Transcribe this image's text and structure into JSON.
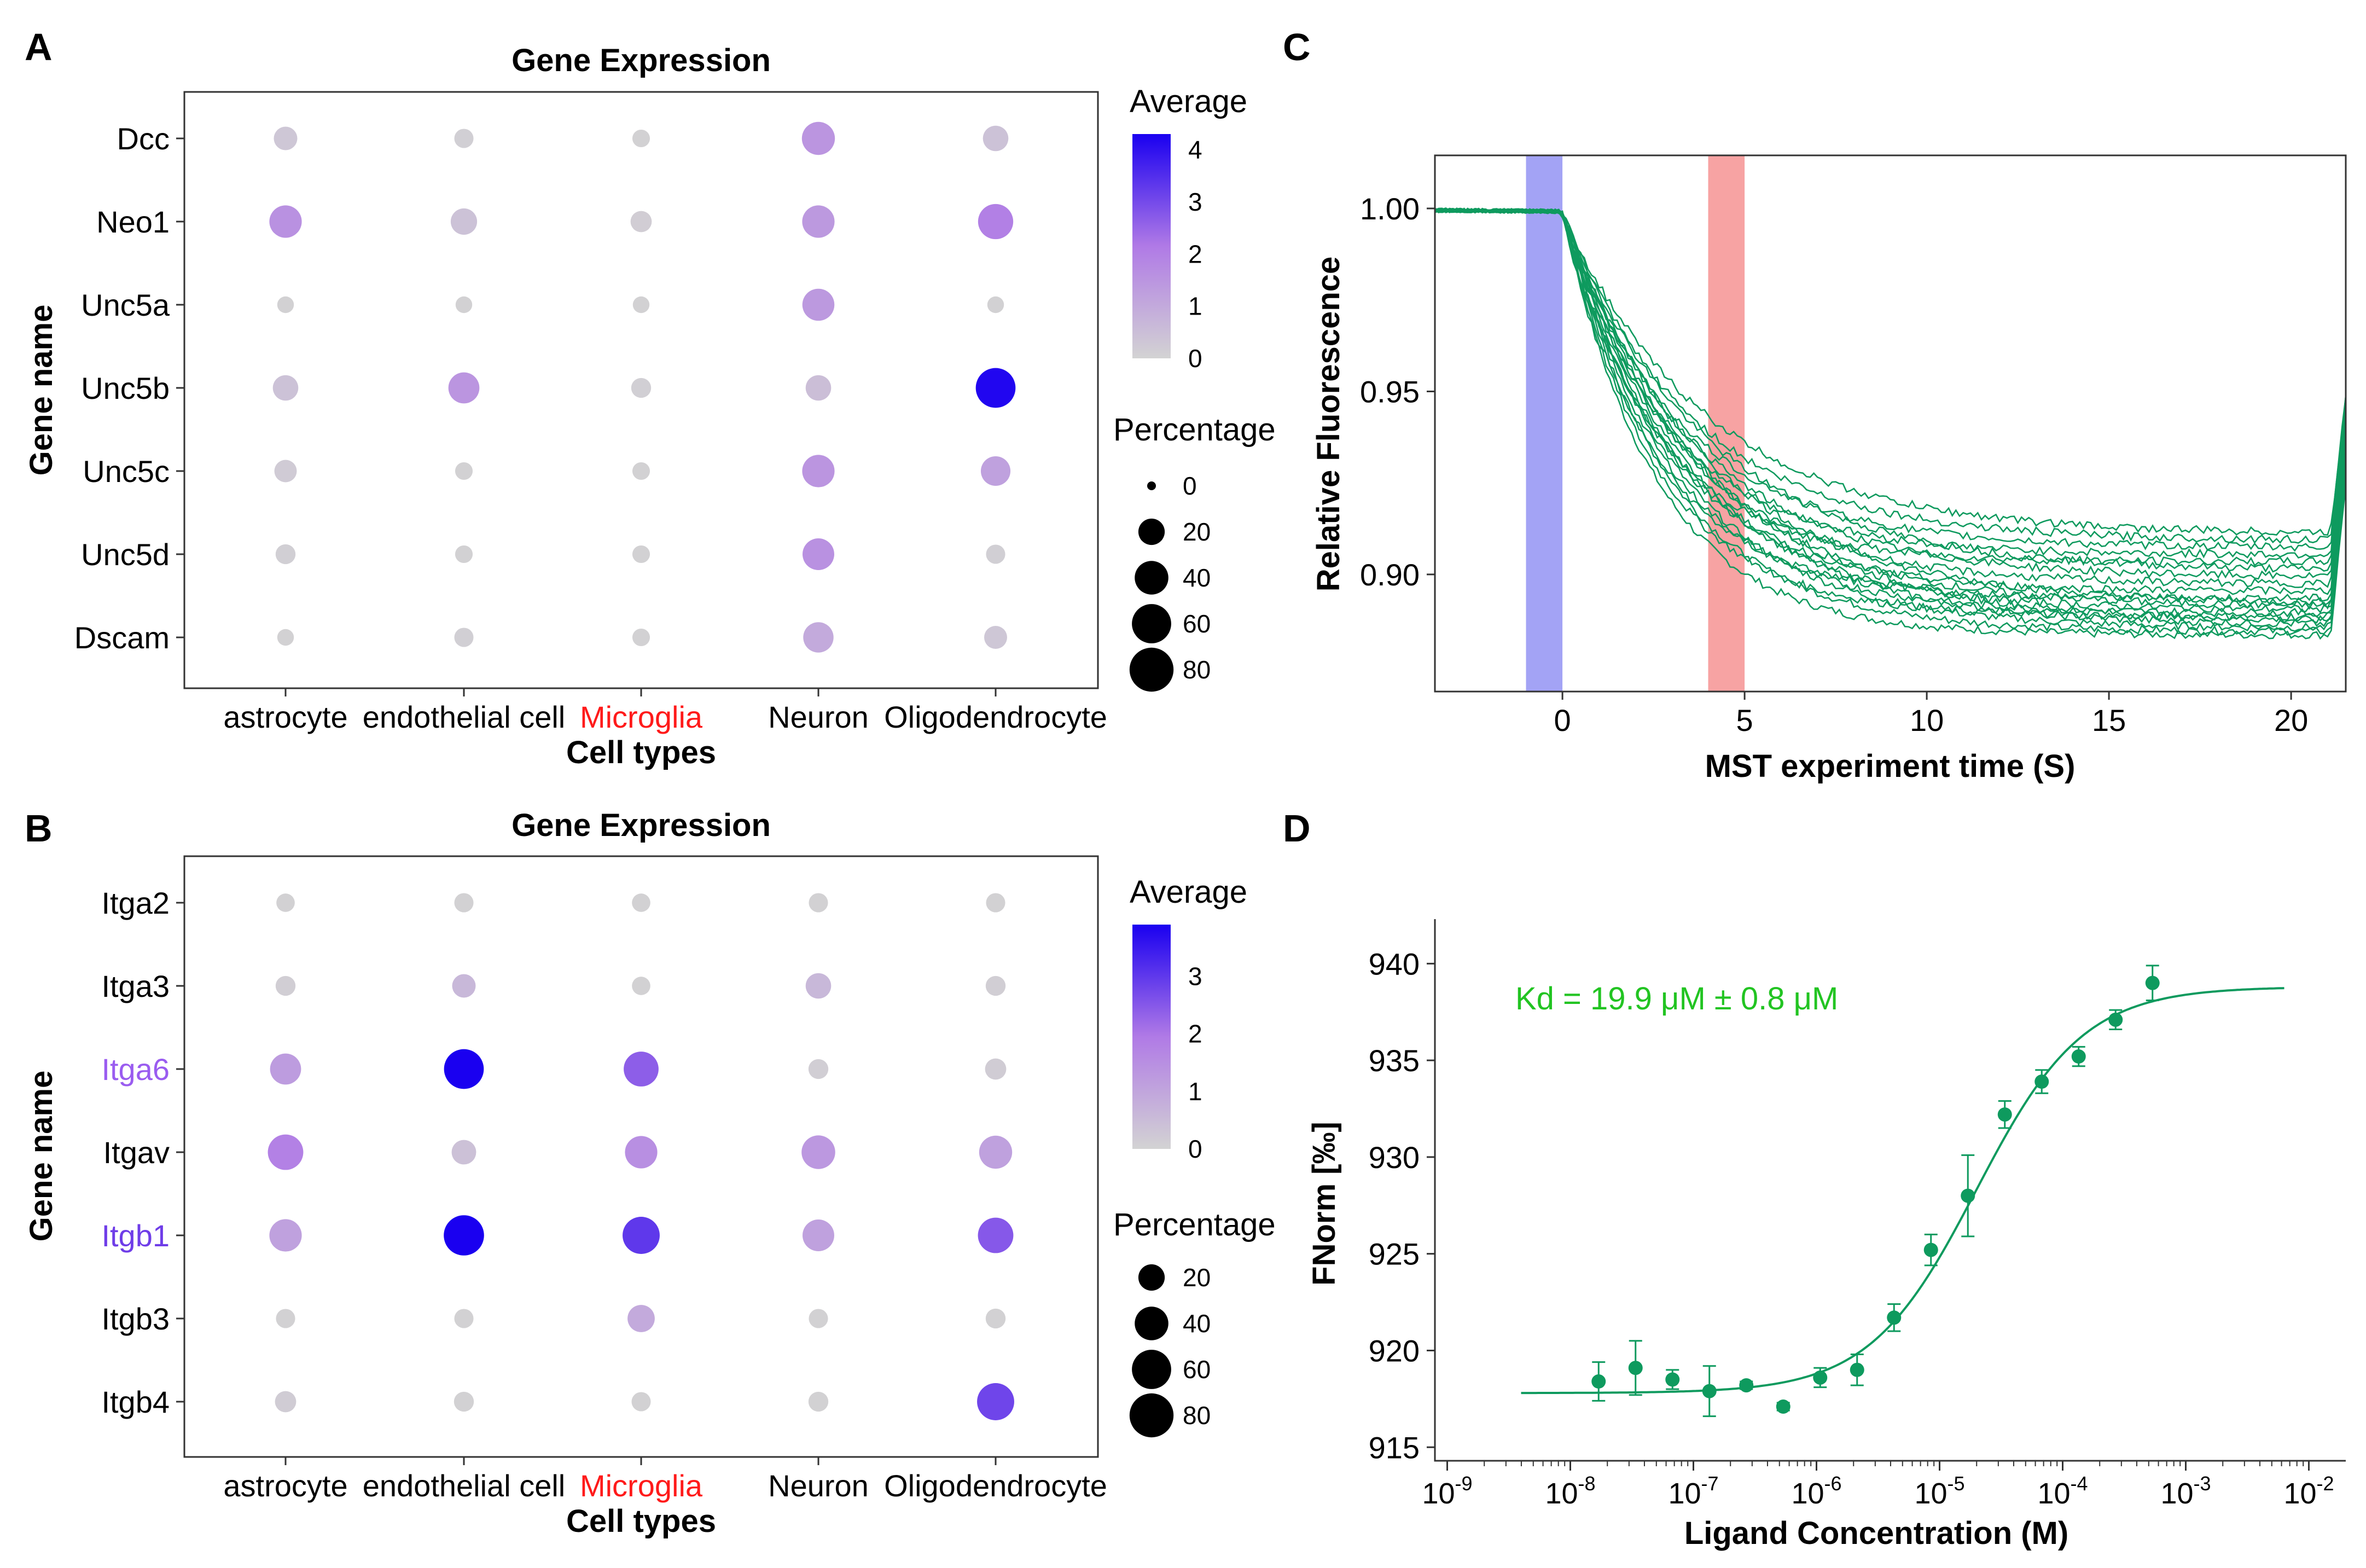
{
  "colors": {
    "low": "#d3d3d3",
    "mid": "#b07ae6",
    "high": "#1a00f0",
    "mst_trace": "#0e9a5e",
    "cold_band": "#a3a3f5",
    "hot_band": "#f7a3a3",
    "kd_text": "#22c422",
    "microglia_label": "#ff1a1a",
    "purple_label": "#9a5cf0",
    "blue_label": "#6f3de8"
  },
  "chart_data": [
    {
      "panel": "A",
      "type": "dotplot",
      "title": "Gene Expression",
      "xlabel": "Cell types",
      "ylabel": "Gene name",
      "categories": [
        "astrocyte",
        "endothelial cell",
        "Microglia",
        "Neuron",
        "Oligodendrocyte"
      ],
      "highlight_categories": [
        "Microglia"
      ],
      "genes": [
        "Dcc",
        "Neo1",
        "Unc5a",
        "Unc5b",
        "Unc5c",
        "Unc5d",
        "Dscam"
      ],
      "average": [
        [
          0.3,
          0.1,
          0.05,
          1.5,
          0.4
        ],
        [
          1.6,
          0.4,
          0.15,
          1.4,
          2.0
        ],
        [
          0.05,
          0.05,
          0.05,
          1.4,
          0.05
        ],
        [
          0.4,
          1.5,
          0.1,
          0.5,
          4.2
        ],
        [
          0.2,
          0.05,
          0.05,
          1.5,
          1.2
        ],
        [
          0.1,
          0.05,
          0.05,
          1.6,
          0.1
        ],
        [
          0.05,
          0.1,
          0.05,
          1.0,
          0.3
        ]
      ],
      "percentage": [
        [
          14,
          7,
          5,
          38,
          18
        ],
        [
          36,
          20,
          10,
          36,
          45
        ],
        [
          4,
          4,
          4,
          35,
          4
        ],
        [
          18,
          32,
          8,
          18,
          62
        ],
        [
          12,
          5,
          5,
          36,
          28
        ],
        [
          8,
          5,
          5,
          34,
          7
        ],
        [
          4,
          7,
          5,
          30,
          13
        ]
      ],
      "average_legend": {
        "title": "Average",
        "ticks": [
          "0",
          "1",
          "2",
          "3",
          "4"
        ],
        "max": 4.3
      },
      "percentage_legend": {
        "title": "Percentage",
        "ticks": [
          "0",
          "20",
          "40",
          "60",
          "80"
        ]
      },
      "pct_max": 85
    },
    {
      "panel": "B",
      "type": "dotplot",
      "title": "Gene Expression",
      "xlabel": "Cell types",
      "ylabel": "Gene name",
      "categories": [
        "astrocyte",
        "endothelial cell",
        "Microglia",
        "Neuron",
        "Oligodendrocyte"
      ],
      "highlight_categories": [
        "Microglia"
      ],
      "genes": [
        "Itga2",
        "Itga3",
        "Itga6",
        "Itgav",
        "Itgb1",
        "Itgb3",
        "Itgb4"
      ],
      "gene_label_colors": [
        "",
        "",
        "purple_label",
        "",
        "blue_label",
        "",
        ""
      ],
      "average": [
        [
          0.05,
          0.05,
          0.05,
          0.05,
          0.05
        ],
        [
          0.1,
          0.6,
          0.05,
          0.6,
          0.1
        ],
        [
          1.2,
          3.9,
          2.4,
          0.1,
          0.15
        ],
        [
          1.8,
          0.4,
          1.5,
          1.3,
          1.1
        ],
        [
          1.1,
          3.9,
          3.0,
          1.1,
          2.5
        ],
        [
          0.05,
          0.05,
          0.9,
          0.05,
          0.05
        ],
        [
          0.15,
          0.05,
          0.05,
          0.05,
          2.8
        ]
      ],
      "percentage": [
        [
          6,
          7,
          6,
          7,
          7
        ],
        [
          8,
          14,
          6,
          18,
          8
        ],
        [
          32,
          62,
          44,
          8,
          10
        ],
        [
          46,
          16,
          36,
          40,
          38
        ],
        [
          36,
          64,
          52,
          34,
          46
        ],
        [
          7,
          7,
          22,
          7,
          8
        ],
        [
          10,
          8,
          7,
          8,
          52
        ]
      ],
      "average_legend": {
        "title": "Average",
        "ticks": [
          "0",
          "1",
          "2",
          "3"
        ],
        "max": 3.9
      },
      "percentage_legend": {
        "title": "Percentage",
        "ticks": [
          "20",
          "40",
          "60",
          "80"
        ]
      },
      "pct_max": 85
    },
    {
      "panel": "C",
      "type": "line",
      "xlabel": "MST experiment time (S)",
      "ylabel": "Relative Fluorescence",
      "xlim": [
        -3.5,
        21.5
      ],
      "ylim": [
        0.868,
        1.0145
      ],
      "xticks": [
        0,
        5,
        10,
        15,
        20
      ],
      "xtick_labels": [
        "0",
        "5",
        "10",
        "15",
        "20"
      ],
      "yticks": [
        0.9,
        0.95,
        1.0
      ],
      "ytick_labels": [
        "0.90",
        "0.95",
        "1.00"
      ],
      "cold_region": [
        -1,
        0
      ],
      "hot_region": [
        4,
        5
      ],
      "trace_final_values": [
        0.885,
        0.886,
        0.887,
        0.888,
        0.889,
        0.89,
        0.891,
        0.892,
        0.893,
        0.894,
        0.895,
        0.897,
        0.899,
        0.901,
        0.903,
        0.905,
        0.907,
        0.909,
        0.911,
        0.913
      ],
      "trace_recovery_values": [
        0.925,
        0.928,
        0.93,
        0.932,
        0.934,
        0.935,
        0.936,
        0.937,
        0.938,
        0.939,
        0.94,
        0.941,
        0.942,
        0.943,
        0.944,
        0.945,
        0.946,
        0.947,
        0.948,
        0.949
      ]
    },
    {
      "panel": "D",
      "type": "scatter",
      "xlabel": "Ligand Concentration (M)",
      "ylabel": "FNorm [‰]",
      "xscale": "log",
      "xlim_log10": [
        -9.1,
        -1.7
      ],
      "ylim": [
        914.3,
        942.3
      ],
      "xtick_exponents": [
        -9,
        -8,
        -7,
        -6,
        -5,
        -4,
        -3,
        -2
      ],
      "xtick_labels": [
        "10-9",
        "10-8",
        "10-7",
        "10-6",
        "10-5",
        "10-4",
        "10-3",
        "10-2"
      ],
      "yticks": [
        915,
        920,
        925,
        930,
        935,
        940
      ],
      "ytick_labels": [
        "915",
        "920",
        "925",
        "930",
        "935",
        "940"
      ],
      "annotation": "Kd = 19.9 μM ± 0.8 μM",
      "log10_concentration": [
        -7.77,
        -7.47,
        -7.17,
        -6.87,
        -6.57,
        -6.27,
        -5.97,
        -5.67,
        -5.37,
        -5.07,
        -4.77,
        -4.47,
        -4.17,
        -3.87,
        -3.57,
        -3.27
      ],
      "fnorm": [
        918.4,
        919.1,
        918.5,
        917.9,
        918.2,
        917.1,
        918.6,
        919.0,
        921.7,
        925.2,
        928.0,
        932.2,
        933.9,
        935.2,
        937.1,
        939.0
      ],
      "error": [
        1.0,
        1.4,
        0.5,
        1.3,
        0.2,
        0.2,
        0.5,
        0.8,
        0.7,
        0.8,
        2.1,
        0.7,
        0.6,
        0.5,
        0.5,
        0.9
      ],
      "fit": {
        "kd": 1.99e-05,
        "bottom": 917.8,
        "top": 938.8,
        "log10_range": [
          -8.4,
          -2.2
        ]
      }
    }
  ],
  "panel_labels": [
    "A",
    "B",
    "C",
    "D"
  ]
}
